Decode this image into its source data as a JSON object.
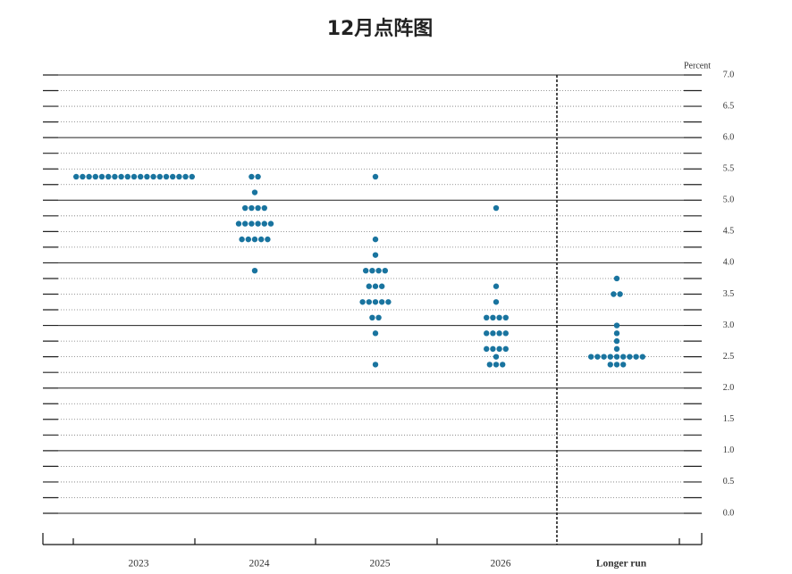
{
  "chart_data": {
    "type": "dot",
    "title": "12月点阵图",
    "y_label": "Percent",
    "categories": [
      "2023",
      "2024",
      "2025",
      "2026",
      "Longer run"
    ],
    "color": "#19749f",
    "dots": [
      [
        5.375,
        5.375,
        5.375,
        5.375,
        5.375,
        5.375,
        5.375,
        5.375,
        5.375,
        5.375,
        5.375,
        5.375,
        5.375,
        5.375,
        5.375,
        5.375,
        5.375,
        5.375,
        5.375
      ],
      [
        5.375,
        5.375,
        5.125,
        4.875,
        4.875,
        4.875,
        4.875,
        4.625,
        4.625,
        4.625,
        4.625,
        4.625,
        4.625,
        4.375,
        4.375,
        4.375,
        4.375,
        4.375,
        3.875
      ],
      [
        5.375,
        4.375,
        4.125,
        3.875,
        3.875,
        3.875,
        3.875,
        3.625,
        3.625,
        3.625,
        3.375,
        3.375,
        3.375,
        3.375,
        3.375,
        3.125,
        3.125,
        2.875,
        2.375
      ],
      [
        4.875,
        3.625,
        3.375,
        3.125,
        3.125,
        3.125,
        3.125,
        2.875,
        2.875,
        2.875,
        2.875,
        2.625,
        2.625,
        2.625,
        2.625,
        2.5,
        2.375,
        2.375,
        2.375
      ],
      [
        3.75,
        3.5,
        3.5,
        3.0,
        2.875,
        2.75,
        2.625,
        2.5,
        2.5,
        2.5,
        2.5,
        2.5,
        2.5,
        2.5,
        2.5,
        2.5,
        2.375,
        2.375,
        2.375
      ]
    ],
    "ylim": [
      0,
      7
    ],
    "yticks": [
      {
        "value": 0,
        "label": "0.0"
      },
      0.5,
      {
        "value": 1,
        "label": "1.0"
      },
      1.5,
      {
        "value": 2,
        "label": "2.0"
      },
      2.5,
      {
        "value": 3,
        "label": "3.0"
      },
      3.5,
      {
        "value": 4,
        "label": "4.0"
      },
      4.5,
      {
        "value": 5,
        "label": "5.0"
      },
      5.5,
      {
        "value": 6,
        "label": "6.0"
      },
      6.5,
      {
        "value": 7,
        "label": "7.0"
      }
    ],
    "grid": true
  }
}
